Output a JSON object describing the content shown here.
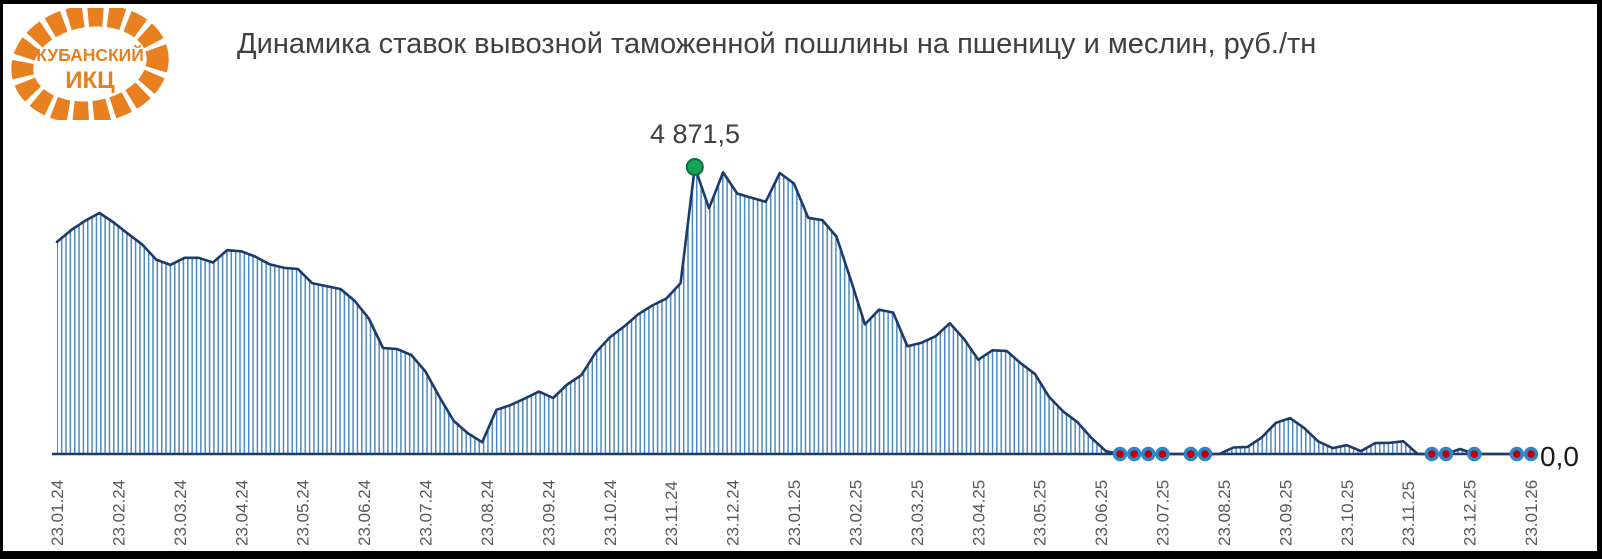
{
  "logo": {
    "line1": "КУБАНСКИЙ",
    "line2": "ИКЦ",
    "color": "#e8801f"
  },
  "chart_data": {
    "type": "area",
    "title": "Динамика ставок вывозной таможенной пошлины на пшеницу и меслин, руб./тн",
    "unit": "руб./тн",
    "frequency": "weekly",
    "grid": false,
    "ylim": [
      0,
      4871.5
    ],
    "x_tick_labels": [
      "23.01.24",
      "23.02.24",
      "23.03.24",
      "23.04.24",
      "23.05.24",
      "23.06.24",
      "23.07.24",
      "23.08.24",
      "23.09.24",
      "23.10.24",
      "23.11.24",
      "23.12.24",
      "23.01.25",
      "23.02.25",
      "23.03.25",
      "23.04.25",
      "23.05.25",
      "23.06.25",
      "23.07.25",
      "23.08.25",
      "23.09.25",
      "23.10.25",
      "23.11.25",
      "23.12.25",
      "23.01.26"
    ],
    "values": [
      3600,
      3800,
      3960,
      4090,
      3930,
      3740,
      3560,
      3300,
      3210,
      3330,
      3330,
      3250,
      3460,
      3440,
      3350,
      3220,
      3160,
      3140,
      2900,
      2850,
      2800,
      2600,
      2300,
      1800,
      1780,
      1680,
      1400,
      960,
      560,
      350,
      200,
      750,
      830,
      940,
      1060,
      950,
      1180,
      1340,
      1720,
      1980,
      2160,
      2370,
      2520,
      2640,
      2900,
      4871.5,
      4170,
      4780,
      4420,
      4350,
      4280,
      4770,
      4590,
      4010,
      3970,
      3690,
      2960,
      2200,
      2450,
      2400,
      1830,
      1890,
      2000,
      2220,
      1950,
      1600,
      1760,
      1750,
      1540,
      1360,
      970,
      720,
      540,
      270,
      50,
      0,
      0,
      0,
      0,
      0,
      0,
      0,
      0,
      110,
      120,
      280,
      530,
      610,
      440,
      210,
      100,
      150,
      50,
      185,
      190,
      215,
      0,
      0,
      0,
      85,
      0,
      0,
      0,
      0,
      0
    ],
    "peak_annotation": {
      "index": 45,
      "label": "4 871,5",
      "value": 4871.5
    },
    "last_annotation": {
      "label": "0,0",
      "value": 0
    },
    "zero_marker_indexes": [
      75,
      76,
      77,
      78,
      80,
      81,
      97,
      98,
      100,
      103,
      104
    ],
    "colors": {
      "line": "#1c3a6b",
      "hatch": "#4d89c2",
      "zero_marker_fill": "#c00000",
      "zero_marker_ring": "#2e86c8",
      "peak_marker_fill": "#17a456",
      "peak_marker_ring": "#0e6e38",
      "tick_text": "#595959",
      "title_text": "#404040"
    }
  }
}
